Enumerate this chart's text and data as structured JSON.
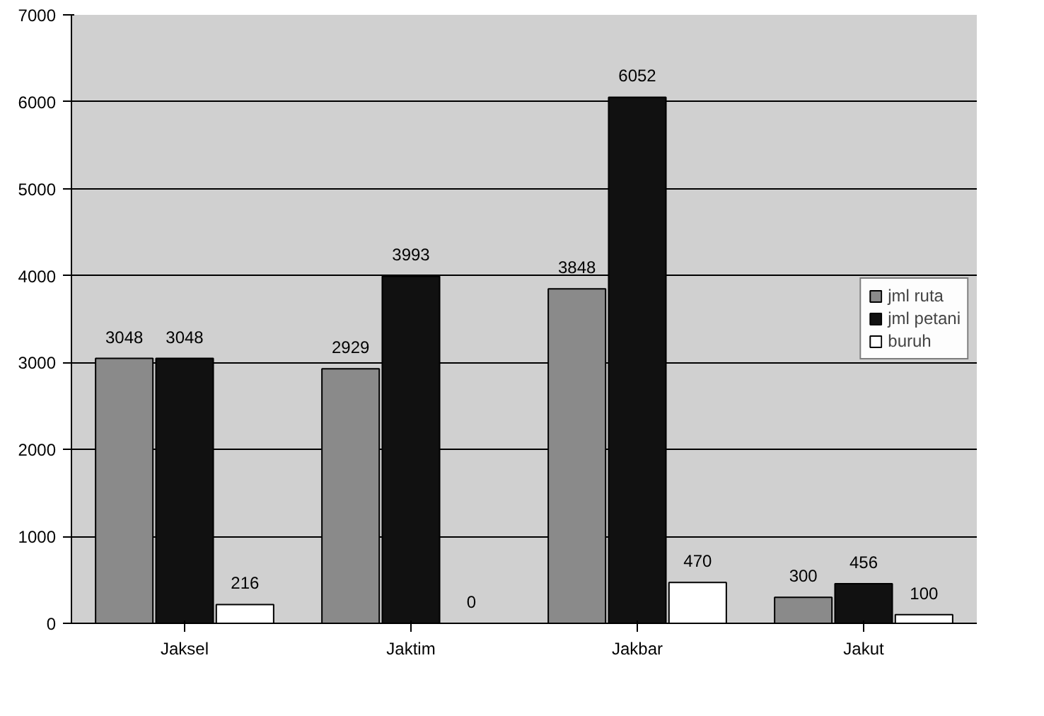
{
  "chart_data": {
    "type": "bar",
    "categories": [
      "Jaksel",
      "Jaktim",
      "Jakbar",
      "Jakut"
    ],
    "series": [
      {
        "name": "jml ruta",
        "color": "#8a8a8a",
        "values": [
          3048,
          2929,
          3848,
          300
        ]
      },
      {
        "name": "jml petani",
        "color": "#111111",
        "values": [
          3048,
          3993,
          6052,
          456
        ]
      },
      {
        "name": "buruh",
        "color": "#ffffff",
        "values": [
          216,
          0,
          470,
          100
        ]
      }
    ],
    "ylim": [
      0,
      7000
    ],
    "yticks": [
      0,
      1000,
      2000,
      3000,
      4000,
      5000,
      6000,
      7000
    ],
    "grid": "y",
    "legend": "right",
    "data_labels": true
  }
}
